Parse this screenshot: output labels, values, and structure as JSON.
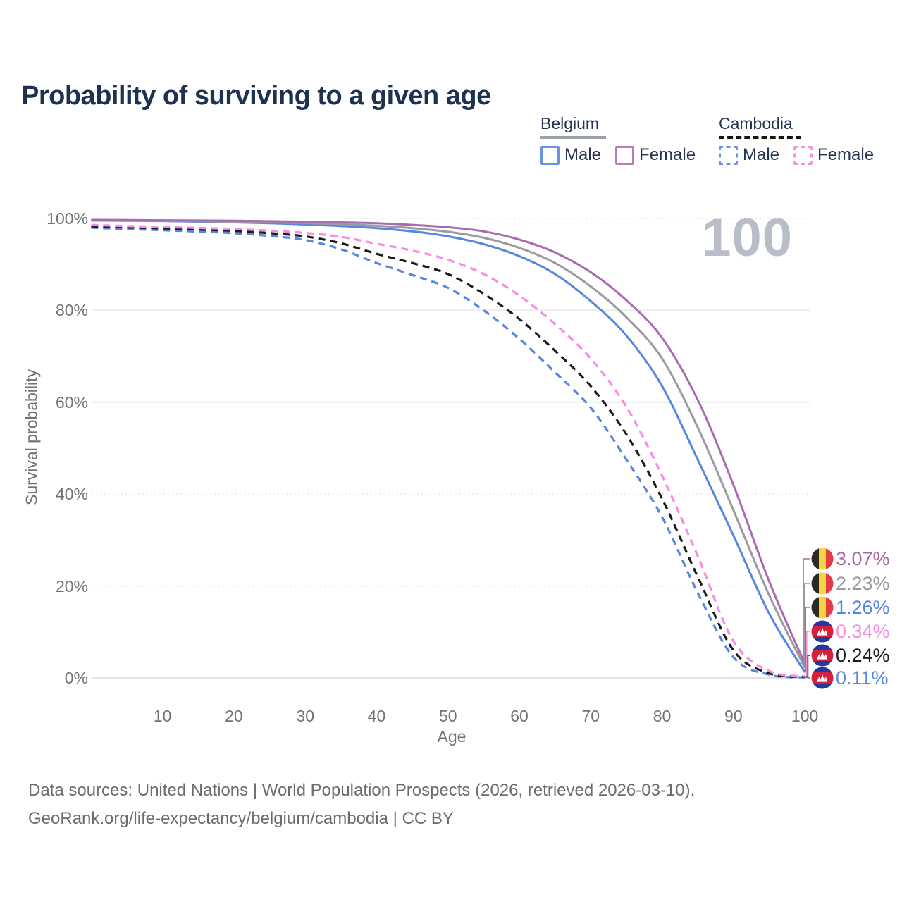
{
  "title": "Probability of surviving to a given age",
  "watermark": "100",
  "legend": {
    "groups": [
      {
        "name": "Belgium",
        "line_style": "solid",
        "underline_color": "#9aa0a6",
        "items": [
          {
            "label": "Male",
            "color": "#5586e2"
          },
          {
            "label": "Female",
            "color": "#b77db8"
          }
        ]
      },
      {
        "name": "Cambodia",
        "line_style": "dashed",
        "underline_color": "#141414",
        "items": [
          {
            "label": "Male",
            "color": "#5586e2"
          },
          {
            "label": "Female",
            "color": "#f98ce2"
          }
        ]
      }
    ]
  },
  "chart_data": {
    "type": "line",
    "title": "Probability of surviving to a given age",
    "xlabel": "Age",
    "ylabel": "Survival probability",
    "xlim": [
      0,
      100
    ],
    "ylim": [
      0,
      100
    ],
    "x": [
      0,
      5,
      10,
      15,
      20,
      25,
      30,
      35,
      40,
      45,
      50,
      55,
      60,
      65,
      70,
      75,
      80,
      85,
      90,
      95,
      100
    ],
    "x_tick_values": [
      10,
      20,
      30,
      40,
      50,
      60,
      70,
      80,
      90,
      100
    ],
    "x_tick_labels": [
      "10",
      "20",
      "30",
      "40",
      "50",
      "60",
      "70",
      "80",
      "90",
      "100"
    ],
    "y_tick_values": [
      0,
      20,
      40,
      60,
      80,
      100
    ],
    "y_tick_labels": [
      "0%",
      "20%",
      "40%",
      "60%",
      "80%",
      "100%"
    ],
    "grid": "horizontal",
    "dotted_gridlines": [
      100,
      40,
      20
    ],
    "legend_position": "top-right",
    "series": [
      {
        "name": "Belgium Female",
        "country": "Belgium",
        "sex": "Female",
        "flag": "belgium",
        "dash": false,
        "color": "#a96bb0",
        "label_color": "#a56b9f",
        "end_label": "3.07%",
        "values": [
          99.7,
          99.65,
          99.6,
          99.55,
          99.5,
          99.4,
          99.3,
          99.15,
          98.95,
          98.6,
          98.1,
          97.2,
          95.4,
          92.6,
          88.3,
          82.2,
          74.0,
          60.5,
          42.0,
          21.0,
          3.07
        ]
      },
      {
        "name": "Belgium Both sexes",
        "country": "Belgium",
        "sex": "Both sexes",
        "flag": "belgium",
        "dash": false,
        "color": "#9b9b9e",
        "label_color": "#9b9b9e",
        "end_label": "2.23%",
        "values": [
          99.6,
          99.55,
          99.5,
          99.4,
          99.3,
          99.15,
          99.0,
          98.75,
          98.4,
          97.9,
          97.1,
          95.8,
          93.6,
          90.3,
          85.2,
          78.5,
          69.5,
          54.5,
          36.5,
          18.0,
          2.23
        ]
      },
      {
        "name": "Belgium Male",
        "country": "Belgium",
        "sex": "Male",
        "flag": "belgium",
        "dash": false,
        "color": "#5586e2",
        "label_color": "#5586e2",
        "end_label": "1.26%",
        "values": [
          99.55,
          99.5,
          99.45,
          99.3,
          99.15,
          98.95,
          98.7,
          98.35,
          97.9,
          97.2,
          96.1,
          94.4,
          91.8,
          87.9,
          82.0,
          74.5,
          63.5,
          47.5,
          31.0,
          14.0,
          1.26
        ]
      },
      {
        "name": "Cambodia Female",
        "country": "Cambodia",
        "sex": "Female",
        "flag": "cambodia",
        "dash": true,
        "color": "#f98ce2",
        "label_color": "#f98ce2",
        "end_label": "0.34%",
        "values": [
          98.6,
          98.35,
          98.15,
          97.95,
          97.7,
          97.35,
          96.85,
          96.0,
          94.5,
          93.0,
          91.0,
          87.9,
          83.2,
          77.0,
          69.5,
          59.0,
          44.0,
          26.5,
          8.0,
          1.5,
          0.34
        ]
      },
      {
        "name": "Cambodia Both sexes",
        "country": "Cambodia",
        "sex": "Both sexes",
        "flag": "cambodia",
        "dash": true,
        "color": "#1c1c1c",
        "label_color": "#1c1c1c",
        "end_label": "0.24%",
        "values": [
          98.3,
          98.05,
          97.85,
          97.6,
          97.3,
          96.8,
          96.1,
          94.6,
          92.3,
          90.3,
          87.9,
          83.6,
          78.1,
          71.2,
          63.5,
          53.0,
          39.0,
          22.0,
          6.0,
          1.0,
          0.24
        ]
      },
      {
        "name": "Cambodia Male",
        "country": "Cambodia",
        "sex": "Male",
        "flag": "cambodia",
        "dash": true,
        "color": "#5586e2",
        "label_color": "#5586e2",
        "end_label": "0.11%",
        "values": [
          98.0,
          97.7,
          97.45,
          97.15,
          96.8,
          96.2,
          95.3,
          93.3,
          90.3,
          87.7,
          84.9,
          80.0,
          73.8,
          66.5,
          58.8,
          47.5,
          35.0,
          18.5,
          4.5,
          0.7,
          0.11
        ]
      }
    ]
  },
  "footer": {
    "line1": "Data sources: United Nations | World Population Prospects (2026, retrieved 2026-03-10).",
    "line2": "GeoRank.org/life-expectancy/belgium/cambodia | CC BY"
  }
}
